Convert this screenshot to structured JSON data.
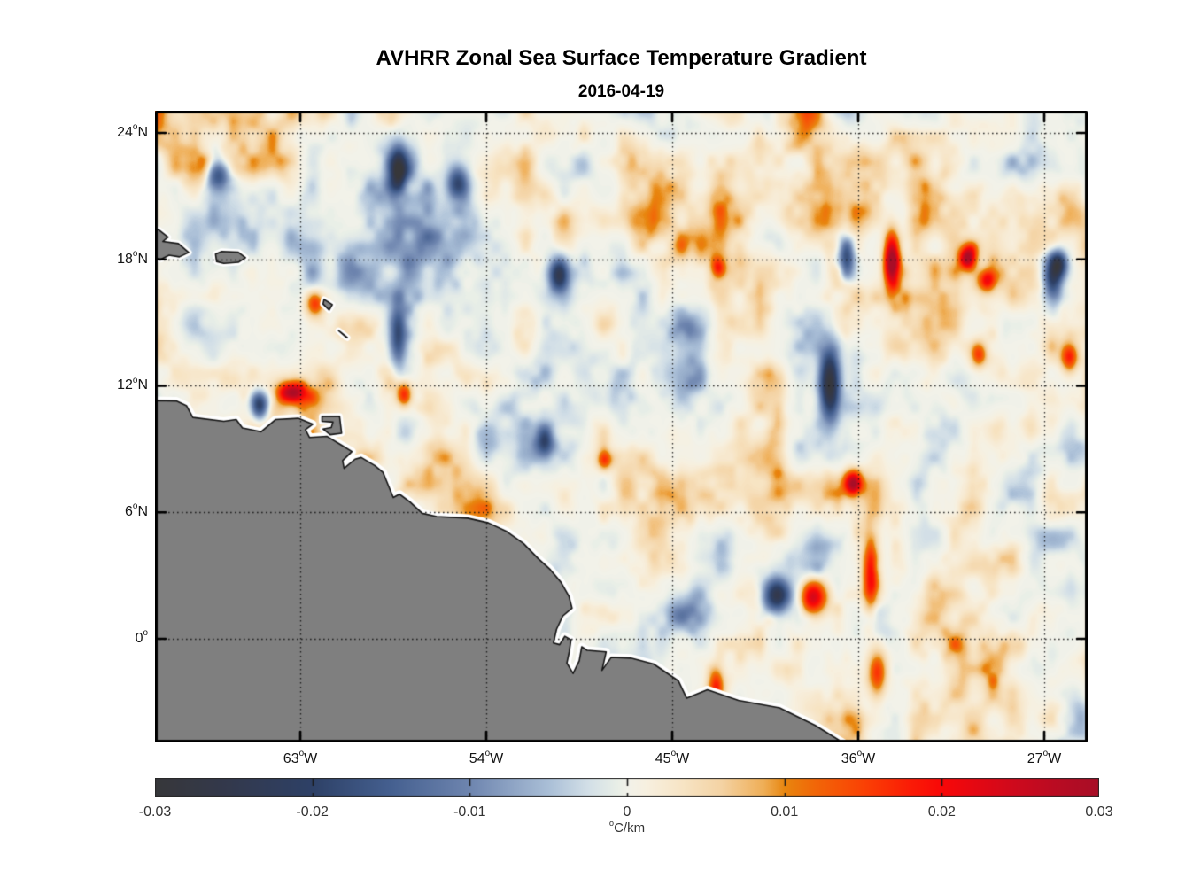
{
  "chart_data": {
    "type": "heatmap",
    "title": "AVHRR Zonal Sea Surface Temperature Gradient",
    "subtitle": "2016-04-19",
    "variable": "zonal sea surface temperature gradient",
    "units": "°C/km",
    "unit_label_parts": {
      "sup": "o",
      "text": "C/km"
    },
    "clim": [
      -0.03,
      0.03
    ],
    "lon_range": [
      -70.03,
      -24.9
    ],
    "lat_range": [
      -4.92,
      25.05
    ],
    "grid": true,
    "x_ticks": [
      {
        "lon": -63,
        "value": "63",
        "sup": "o",
        "suffix": "W"
      },
      {
        "lon": -54,
        "value": "54",
        "sup": "o",
        "suffix": "W"
      },
      {
        "lon": -45,
        "value": "45",
        "sup": "o",
        "suffix": "W"
      },
      {
        "lon": -36,
        "value": "36",
        "sup": "o",
        "suffix": "W"
      },
      {
        "lon": -27,
        "value": "27",
        "sup": "o",
        "suffix": "W"
      }
    ],
    "y_ticks": [
      {
        "lat": 24,
        "value": "24",
        "sup": "o",
        "suffix": "N"
      },
      {
        "lat": 18,
        "value": "18",
        "sup": "o",
        "suffix": "N"
      },
      {
        "lat": 12,
        "value": "12",
        "sup": "o",
        "suffix": "N"
      },
      {
        "lat": 6,
        "value": "6",
        "sup": "o",
        "suffix": "N"
      },
      {
        "lat": 0,
        "value": "0",
        "sup": "o",
        "suffix": ""
      }
    ],
    "colorbar": {
      "orientation": "horizontal",
      "ticks": [
        -0.03,
        -0.02,
        -0.01,
        0,
        0.01,
        0.02,
        0.03
      ],
      "labels": [
        "-0.03",
        "-0.02",
        "-0.01",
        "0",
        "0.01",
        "0.02",
        "0.03"
      ]
    },
    "colormap_stops": [
      [
        0.0,
        "#37373a"
      ],
      [
        0.08,
        "#33394d"
      ],
      [
        0.167,
        "#2e4167"
      ],
      [
        0.25,
        "#456090"
      ],
      [
        0.333,
        "#6e85af"
      ],
      [
        0.417,
        "#aabfd7"
      ],
      [
        0.458,
        "#d2dfe7"
      ],
      [
        0.49,
        "#e9efe7"
      ],
      [
        0.5,
        "#f2f2ea"
      ],
      [
        0.52,
        "#f7f0e0"
      ],
      [
        0.56,
        "#f7e4c4"
      ],
      [
        0.6,
        "#f4d3a4"
      ],
      [
        0.645,
        "#efae56"
      ],
      [
        0.667,
        "#e8860f"
      ],
      [
        0.7,
        "#f26608"
      ],
      [
        0.75,
        "#fa4205"
      ],
      [
        0.8,
        "#fb1c06"
      ],
      [
        0.833,
        "#f90808"
      ],
      [
        0.87,
        "#e40813"
      ],
      [
        0.917,
        "#cb0a1e"
      ],
      [
        0.96,
        "#b70c23"
      ],
      [
        1.0,
        "#a80e27"
      ]
    ],
    "land_color": "#7f7f7f",
    "coastline_color": "#141414",
    "nodata_halo_color": "#ffffff",
    "grid_color": "#141414",
    "axis_color": "#000000",
    "mainland_coastline": [
      [
        -70.03,
        11.3
      ],
      [
        -69.0,
        11.28
      ],
      [
        -68.5,
        11.05
      ],
      [
        -68.2,
        10.5
      ],
      [
        -66.7,
        10.32
      ],
      [
        -66.1,
        10.4
      ],
      [
        -65.8,
        10.0
      ],
      [
        -64.9,
        9.82
      ],
      [
        -64.2,
        10.4
      ],
      [
        -63.1,
        10.46
      ],
      [
        -62.4,
        10.18
      ],
      [
        -62.75,
        9.92
      ],
      [
        -62.55,
        9.55
      ],
      [
        -61.7,
        9.6
      ],
      [
        -61.0,
        9.18
      ],
      [
        -60.5,
        8.88
      ],
      [
        -60.95,
        8.45
      ],
      [
        -60.88,
        8.08
      ],
      [
        -60.35,
        8.52
      ],
      [
        -60.05,
        8.6
      ],
      [
        -59.4,
        8.22
      ],
      [
        -59.0,
        7.9
      ],
      [
        -58.5,
        6.7
      ],
      [
        -58.2,
        6.86
      ],
      [
        -57.7,
        6.5
      ],
      [
        -57.1,
        5.95
      ],
      [
        -56.4,
        5.8
      ],
      [
        -54.9,
        5.72
      ],
      [
        -53.9,
        5.5
      ],
      [
        -53.0,
        5.08
      ],
      [
        -52.2,
        4.52
      ],
      [
        -51.5,
        3.82
      ],
      [
        -50.9,
        3.28
      ],
      [
        -50.4,
        2.7
      ],
      [
        -50.0,
        2.02
      ],
      [
        -49.85,
        1.45
      ],
      [
        -50.3,
        1.08
      ],
      [
        -50.6,
        0.45
      ],
      [
        -50.75,
        -0.2
      ],
      [
        -50.45,
        -0.28
      ],
      [
        -50.2,
        0.12
      ],
      [
        -49.9,
        -0.05
      ],
      [
        -49.98,
        -0.6
      ],
      [
        -50.1,
        -1.15
      ],
      [
        -49.8,
        -1.65
      ],
      [
        -49.5,
        -1.05
      ],
      [
        -49.38,
        -0.38
      ],
      [
        -49.12,
        -0.55
      ],
      [
        -48.2,
        -0.62
      ],
      [
        -48.4,
        -1.5
      ],
      [
        -47.95,
        -0.88
      ],
      [
        -47.0,
        -0.92
      ],
      [
        -45.9,
        -1.2
      ],
      [
        -44.7,
        -2.0
      ],
      [
        -44.3,
        -2.82
      ],
      [
        -43.3,
        -2.42
      ],
      [
        -41.8,
        -2.92
      ],
      [
        -39.8,
        -3.28
      ],
      [
        -38.1,
        -4.1
      ],
      [
        -36.7,
        -4.95
      ],
      [
        -70.03,
        -4.95
      ]
    ],
    "islands": {
      "hispaniola_east": [
        [
          -70.03,
          19.45
        ],
        [
          -69.85,
          19.4
        ],
        [
          -69.4,
          19.05
        ],
        [
          -69.65,
          18.85
        ],
        [
          -68.9,
          18.75
        ],
        [
          -68.4,
          18.33
        ],
        [
          -68.85,
          18.12
        ],
        [
          -69.35,
          18.2
        ],
        [
          -69.75,
          18.0
        ],
        [
          -70.03,
          18.05
        ]
      ],
      "puerto_rico": [
        [
          -67.1,
          18.25
        ],
        [
          -66.8,
          18.38
        ],
        [
          -66.0,
          18.34
        ],
        [
          -65.65,
          18.08
        ],
        [
          -66.0,
          17.86
        ],
        [
          -66.7,
          17.81
        ],
        [
          -67.05,
          17.9
        ]
      ],
      "trinidad": [
        [
          -61.95,
          10.55
        ],
        [
          -61.1,
          10.56
        ],
        [
          -61.0,
          9.75
        ],
        [
          -61.55,
          9.68
        ],
        [
          -61.9,
          9.95
        ],
        [
          -61.5,
          10.02
        ],
        [
          -61.42,
          10.28
        ],
        [
          -61.95,
          10.32
        ]
      ],
      "martinique": [
        [
          -61.85,
          16.1
        ],
        [
          -61.45,
          15.85
        ],
        [
          -61.6,
          15.6
        ],
        [
          -61.9,
          15.88
        ]
      ],
      "st_lucia": [
        [
          -61.15,
          14.62
        ],
        [
          -60.8,
          14.32
        ],
        [
          -60.72,
          14.28
        ],
        [
          -61.05,
          14.55
        ]
      ]
    },
    "anomaly_features": [
      {
        "lon": -34.4,
        "lat": 18.0,
        "amp": 0.03,
        "sx": 0.38,
        "sy": 1.3
      },
      {
        "lon": -30.7,
        "lat": 18.1,
        "amp": 0.027,
        "sx": 0.4,
        "sy": 0.58
      },
      {
        "lon": -29.8,
        "lat": 17.0,
        "amp": 0.018,
        "sx": 0.45,
        "sy": 0.52
      },
      {
        "lon": -36.6,
        "lat": 18.2,
        "amp": -0.02,
        "sx": 0.4,
        "sy": 1.1
      },
      {
        "lon": -26.6,
        "lat": 16.9,
        "amp": -0.022,
        "sx": 0.48,
        "sy": 1.35
      },
      {
        "lon": -26.3,
        "lat": 17.8,
        "amp": -0.02,
        "sx": 0.4,
        "sy": 0.6
      },
      {
        "lon": -37.4,
        "lat": 12.1,
        "amp": -0.03,
        "sx": 0.48,
        "sy": 1.7
      },
      {
        "lon": -40.0,
        "lat": 2.1,
        "amp": -0.028,
        "sx": 0.7,
        "sy": 0.78
      },
      {
        "lon": -38.2,
        "lat": 2.0,
        "amp": 0.024,
        "sx": 0.65,
        "sy": 0.8
      },
      {
        "lon": -35.4,
        "lat": 3.2,
        "amp": 0.02,
        "sx": 0.4,
        "sy": 1.8
      },
      {
        "lon": -63.4,
        "lat": 11.7,
        "amp": 0.028,
        "sx": 0.7,
        "sy": 0.52
      },
      {
        "lon": -65.0,
        "lat": 11.1,
        "amp": -0.026,
        "sx": 0.45,
        "sy": 0.65
      },
      {
        "lon": -67.0,
        "lat": 22.2,
        "amp": -0.021,
        "sx": 0.55,
        "sy": 0.85
      },
      {
        "lon": -58.3,
        "lat": 22.3,
        "amp": -0.023,
        "sx": 0.45,
        "sy": 1.05
      },
      {
        "lon": -55.4,
        "lat": 21.6,
        "amp": -0.019,
        "sx": 0.52,
        "sy": 0.8
      },
      {
        "lon": -50.5,
        "lat": 17.3,
        "amp": -0.024,
        "sx": 0.48,
        "sy": 0.8
      },
      {
        "lon": -58.3,
        "lat": 14.4,
        "amp": -0.018,
        "sx": 0.4,
        "sy": 1.45
      },
      {
        "lon": -58.0,
        "lat": 11.6,
        "amp": 0.016,
        "sx": 0.35,
        "sy": 0.55
      },
      {
        "lon": -25.8,
        "lat": 13.4,
        "amp": 0.018,
        "sx": 0.4,
        "sy": 0.7
      },
      {
        "lon": -42.9,
        "lat": -2.3,
        "amp": 0.018,
        "sx": 0.4,
        "sy": 0.95
      },
      {
        "lon": -36.3,
        "lat": 7.4,
        "amp": 0.021,
        "sx": 0.4,
        "sy": 0.55
      },
      {
        "lon": -35.1,
        "lat": -1.6,
        "amp": 0.016,
        "sx": 0.45,
        "sy": 1.05
      },
      {
        "lon": -62.3,
        "lat": 15.9,
        "amp": 0.016,
        "sx": 0.45,
        "sy": 0.6
      },
      {
        "lon": -30.2,
        "lat": 13.5,
        "amp": 0.015,
        "sx": 0.4,
        "sy": 0.6
      },
      {
        "lon": -42.8,
        "lat": 17.7,
        "amp": 0.014,
        "sx": 0.35,
        "sy": 0.5
      },
      {
        "lon": -51.2,
        "lat": 9.3,
        "amp": -0.014,
        "sx": 0.4,
        "sy": 0.7
      },
      {
        "lon": -48.3,
        "lat": 8.5,
        "amp": 0.015,
        "sx": 0.35,
        "sy": 0.5
      }
    ],
    "background_texture": {
      "seeds": [
        11,
        23,
        37,
        53
      ],
      "octaves": [
        {
          "wx": 150,
          "wy": 150,
          "a": 0.3
        },
        {
          "wx": 46,
          "wy": 62,
          "a": 0.45
        },
        {
          "wx": 22,
          "wy": 30,
          "a": 0.3
        },
        {
          "wx": 11,
          "wy": 14,
          "a": 0.12
        }
      ],
      "gamma": 1.55,
      "scale": 0.0165
    }
  }
}
